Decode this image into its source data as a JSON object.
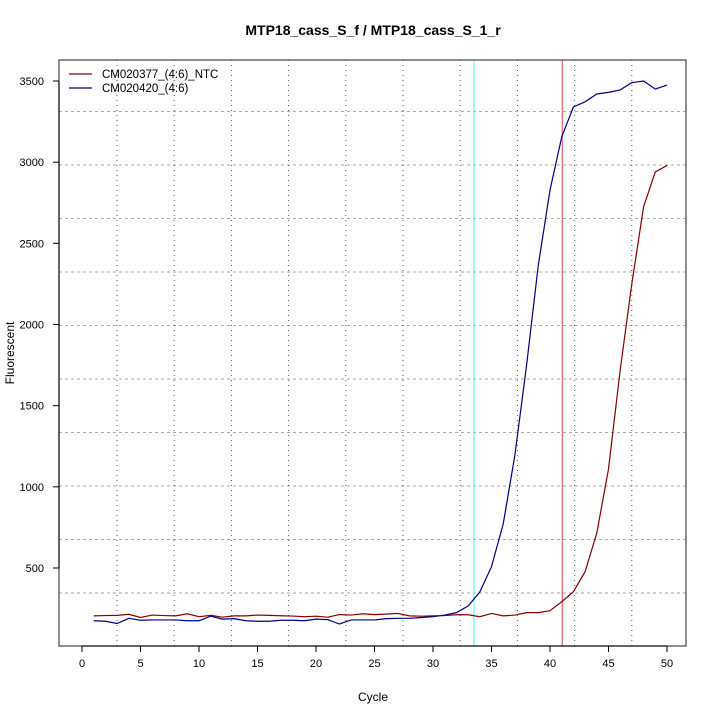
{
  "chart_data": {
    "type": "line",
    "title": "MTP18_cass_S_f / MTP18_cass_S_1_r",
    "xlabel": "Cycle",
    "ylabel": "Fluorescent",
    "xlim": [
      -2,
      51.5
    ],
    "ylim": [
      100,
      3600
    ],
    "xticks": [
      0,
      5,
      10,
      15,
      20,
      25,
      30,
      35,
      40,
      45,
      50
    ],
    "yticks": [
      500,
      1000,
      1500,
      2000,
      2500,
      3000,
      3500
    ],
    "grid": true,
    "legend_position": "top-left",
    "threshold_lines": [
      {
        "cycle": 33.5,
        "color": "#66ffff"
      },
      {
        "cycle": 41.05,
        "color": "#e07070"
      }
    ],
    "x": [
      1,
      2,
      3,
      4,
      5,
      6,
      7,
      8,
      9,
      10,
      11,
      12,
      13,
      14,
      15,
      16,
      17,
      18,
      19,
      20,
      21,
      22,
      23,
      24,
      25,
      26,
      27,
      28,
      29,
      30,
      31,
      32,
      33,
      34,
      35,
      36,
      37,
      38,
      39,
      40,
      41,
      42,
      43,
      44,
      45,
      46,
      47,
      48,
      49,
      50
    ],
    "series": [
      {
        "name": "CM020377_(4:6)_NTC",
        "color": "#8b0000",
        "values": [
          205,
          207,
          208,
          215,
          195,
          210,
          207,
          205,
          218,
          200,
          208,
          197,
          205,
          205,
          210,
          208,
          206,
          204,
          200,
          203,
          197,
          213,
          210,
          218,
          213,
          216,
          220,
          205,
          203,
          205,
          207,
          212,
          212,
          200,
          220,
          205,
          210,
          225,
          225,
          237,
          292,
          354,
          477,
          715,
          1110,
          1720,
          2255,
          2725,
          2940,
          2980
        ]
      },
      {
        "name": "CM020420_(4:6)",
        "color": "#00008b",
        "values": [
          175,
          172,
          158,
          190,
          178,
          180,
          180,
          180,
          175,
          175,
          203,
          185,
          188,
          175,
          172,
          172,
          178,
          178,
          175,
          185,
          182,
          155,
          180,
          180,
          180,
          188,
          190,
          190,
          195,
          200,
          210,
          225,
          266,
          352,
          508,
          771,
          1196,
          1750,
          2366,
          2828,
          3155,
          3340,
          3372,
          3420,
          3430,
          3445,
          3490,
          3500,
          3450,
          3475
        ]
      }
    ]
  }
}
